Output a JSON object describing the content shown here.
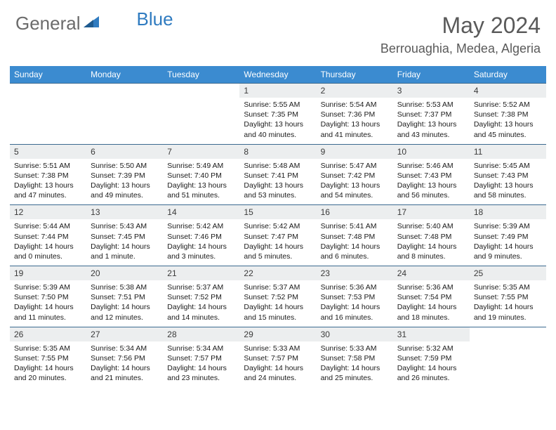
{
  "brand": {
    "name1": "General",
    "name2": "Blue"
  },
  "title": "May 2024",
  "location": "Berrouaghia, Medea, Algeria",
  "colors": {
    "header_bg": "#3b8bd0",
    "header_text": "#ffffff",
    "daynum_bg": "#eceeef",
    "border": "#3b6a90",
    "brand_gray": "#6b6b6b",
    "brand_blue": "#2f7bc0"
  },
  "dayNames": [
    "Sunday",
    "Monday",
    "Tuesday",
    "Wednesday",
    "Thursday",
    "Friday",
    "Saturday"
  ],
  "weeks": [
    [
      null,
      null,
      null,
      {
        "n": "1",
        "sr": "5:55 AM",
        "ss": "7:35 PM",
        "dl": "13 hours and 40 minutes."
      },
      {
        "n": "2",
        "sr": "5:54 AM",
        "ss": "7:36 PM",
        "dl": "13 hours and 41 minutes."
      },
      {
        "n": "3",
        "sr": "5:53 AM",
        "ss": "7:37 PM",
        "dl": "13 hours and 43 minutes."
      },
      {
        "n": "4",
        "sr": "5:52 AM",
        "ss": "7:38 PM",
        "dl": "13 hours and 45 minutes."
      }
    ],
    [
      {
        "n": "5",
        "sr": "5:51 AM",
        "ss": "7:38 PM",
        "dl": "13 hours and 47 minutes."
      },
      {
        "n": "6",
        "sr": "5:50 AM",
        "ss": "7:39 PM",
        "dl": "13 hours and 49 minutes."
      },
      {
        "n": "7",
        "sr": "5:49 AM",
        "ss": "7:40 PM",
        "dl": "13 hours and 51 minutes."
      },
      {
        "n": "8",
        "sr": "5:48 AM",
        "ss": "7:41 PM",
        "dl": "13 hours and 53 minutes."
      },
      {
        "n": "9",
        "sr": "5:47 AM",
        "ss": "7:42 PM",
        "dl": "13 hours and 54 minutes."
      },
      {
        "n": "10",
        "sr": "5:46 AM",
        "ss": "7:43 PM",
        "dl": "13 hours and 56 minutes."
      },
      {
        "n": "11",
        "sr": "5:45 AM",
        "ss": "7:43 PM",
        "dl": "13 hours and 58 minutes."
      }
    ],
    [
      {
        "n": "12",
        "sr": "5:44 AM",
        "ss": "7:44 PM",
        "dl": "14 hours and 0 minutes."
      },
      {
        "n": "13",
        "sr": "5:43 AM",
        "ss": "7:45 PM",
        "dl": "14 hours and 1 minute."
      },
      {
        "n": "14",
        "sr": "5:42 AM",
        "ss": "7:46 PM",
        "dl": "14 hours and 3 minutes."
      },
      {
        "n": "15",
        "sr": "5:42 AM",
        "ss": "7:47 PM",
        "dl": "14 hours and 5 minutes."
      },
      {
        "n": "16",
        "sr": "5:41 AM",
        "ss": "7:48 PM",
        "dl": "14 hours and 6 minutes."
      },
      {
        "n": "17",
        "sr": "5:40 AM",
        "ss": "7:48 PM",
        "dl": "14 hours and 8 minutes."
      },
      {
        "n": "18",
        "sr": "5:39 AM",
        "ss": "7:49 PM",
        "dl": "14 hours and 9 minutes."
      }
    ],
    [
      {
        "n": "19",
        "sr": "5:39 AM",
        "ss": "7:50 PM",
        "dl": "14 hours and 11 minutes."
      },
      {
        "n": "20",
        "sr": "5:38 AM",
        "ss": "7:51 PM",
        "dl": "14 hours and 12 minutes."
      },
      {
        "n": "21",
        "sr": "5:37 AM",
        "ss": "7:52 PM",
        "dl": "14 hours and 14 minutes."
      },
      {
        "n": "22",
        "sr": "5:37 AM",
        "ss": "7:52 PM",
        "dl": "14 hours and 15 minutes."
      },
      {
        "n": "23",
        "sr": "5:36 AM",
        "ss": "7:53 PM",
        "dl": "14 hours and 16 minutes."
      },
      {
        "n": "24",
        "sr": "5:36 AM",
        "ss": "7:54 PM",
        "dl": "14 hours and 18 minutes."
      },
      {
        "n": "25",
        "sr": "5:35 AM",
        "ss": "7:55 PM",
        "dl": "14 hours and 19 minutes."
      }
    ],
    [
      {
        "n": "26",
        "sr": "5:35 AM",
        "ss": "7:55 PM",
        "dl": "14 hours and 20 minutes."
      },
      {
        "n": "27",
        "sr": "5:34 AM",
        "ss": "7:56 PM",
        "dl": "14 hours and 21 minutes."
      },
      {
        "n": "28",
        "sr": "5:34 AM",
        "ss": "7:57 PM",
        "dl": "14 hours and 23 minutes."
      },
      {
        "n": "29",
        "sr": "5:33 AM",
        "ss": "7:57 PM",
        "dl": "14 hours and 24 minutes."
      },
      {
        "n": "30",
        "sr": "5:33 AM",
        "ss": "7:58 PM",
        "dl": "14 hours and 25 minutes."
      },
      {
        "n": "31",
        "sr": "5:32 AM",
        "ss": "7:59 PM",
        "dl": "14 hours and 26 minutes."
      },
      null
    ]
  ],
  "labels": {
    "sunrise": "Sunrise: ",
    "sunset": "Sunset: ",
    "daylight": "Daylight: "
  }
}
